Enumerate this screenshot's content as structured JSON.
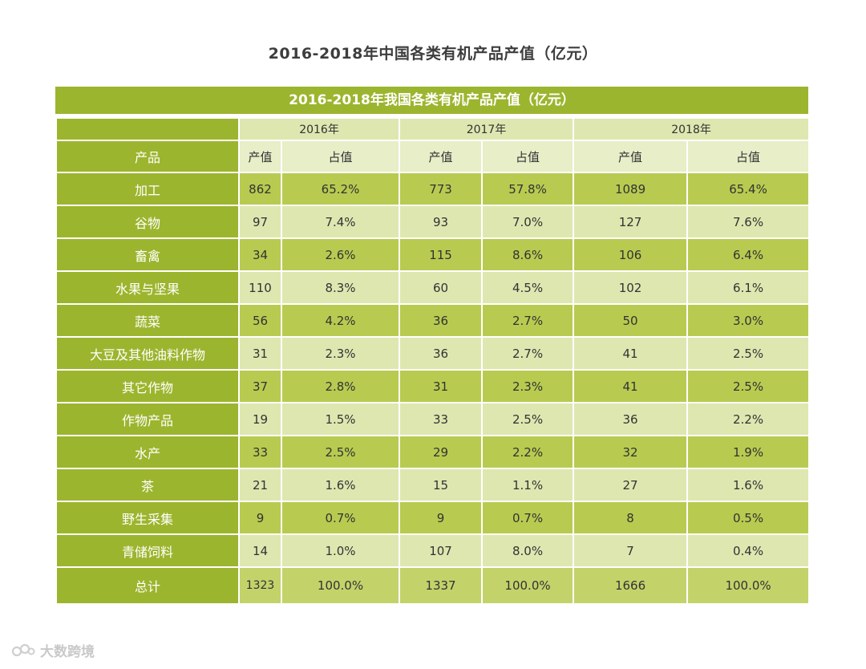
{
  "page_title": "2016-2018年中国各类有机产品产值（亿元）",
  "watermark_text": "大数跨境",
  "colors": {
    "dark_green": "#9cb52e",
    "light_green": "#dee7b0",
    "mid_green": "#cddb8a",
    "white": "#ffffff"
  },
  "chart_data": {
    "type": "table",
    "title": "2016-2018年我国各类有机产品产值（亿元）",
    "years": [
      "2016年",
      "2017年",
      "2018年"
    ],
    "product_header": "产品",
    "value_header": "产值",
    "share_header": "占值",
    "rows": [
      {
        "product": "加工",
        "v2016": "862",
        "s2016": "65.2%",
        "v2017": "773",
        "s2017": "57.8%",
        "v2018": "1089",
        "s2018": "65.4%"
      },
      {
        "product": "谷物",
        "v2016": "97",
        "s2016": "7.4%",
        "v2017": "93",
        "s2017": "7.0%",
        "v2018": "127",
        "s2018": "7.6%"
      },
      {
        "product": "畜禽",
        "v2016": "34",
        "s2016": "2.6%",
        "v2017": "115",
        "s2017": "8.6%",
        "v2018": "106",
        "s2018": "6.4%"
      },
      {
        "product": "水果与坚果",
        "v2016": "110",
        "s2016": "8.3%",
        "v2017": "60",
        "s2017": "4.5%",
        "v2018": "102",
        "s2018": "6.1%"
      },
      {
        "product": "蔬菜",
        "v2016": "56",
        "s2016": "4.2%",
        "v2017": "36",
        "s2017": "2.7%",
        "v2018": "50",
        "s2018": "3.0%"
      },
      {
        "product": "大豆及其他油料作物",
        "v2016": "31",
        "s2016": "2.3%",
        "v2017": "36",
        "s2017": "2.7%",
        "v2018": "41",
        "s2018": "2.5%"
      },
      {
        "product": "其它作物",
        "v2016": "37",
        "s2016": "2.8%",
        "v2017": "31",
        "s2017": "2.3%",
        "v2018": "41",
        "s2018": "2.5%"
      },
      {
        "product": "作物产品",
        "v2016": "19",
        "s2016": "1.5%",
        "v2017": "33",
        "s2017": "2.5%",
        "v2018": "36",
        "s2018": "2.2%"
      },
      {
        "product": "水产",
        "v2016": "33",
        "s2016": "2.5%",
        "v2017": "29",
        "s2017": "2.2%",
        "v2018": "32",
        "s2018": "1.9%"
      },
      {
        "product": "茶",
        "v2016": "21",
        "s2016": "1.6%",
        "v2017": "15",
        "s2017": "1.1%",
        "v2018": "27",
        "s2018": "1.6%"
      },
      {
        "product": "野生采集",
        "v2016": "9",
        "s2016": "0.7%",
        "v2017": "9",
        "s2017": "0.7%",
        "v2018": "8",
        "s2018": "0.5%"
      },
      {
        "product": "青储饲料",
        "v2016": "14",
        "s2016": "1.0%",
        "v2017": "107",
        "s2017": "8.0%",
        "v2018": "7",
        "s2018": "0.4%"
      },
      {
        "product": "总计",
        "v2016": "1323",
        "s2016": "100.0%",
        "v2017": "1337",
        "s2017": "100.0%",
        "v2018": "1666",
        "s2018": "100.0%"
      }
    ]
  }
}
